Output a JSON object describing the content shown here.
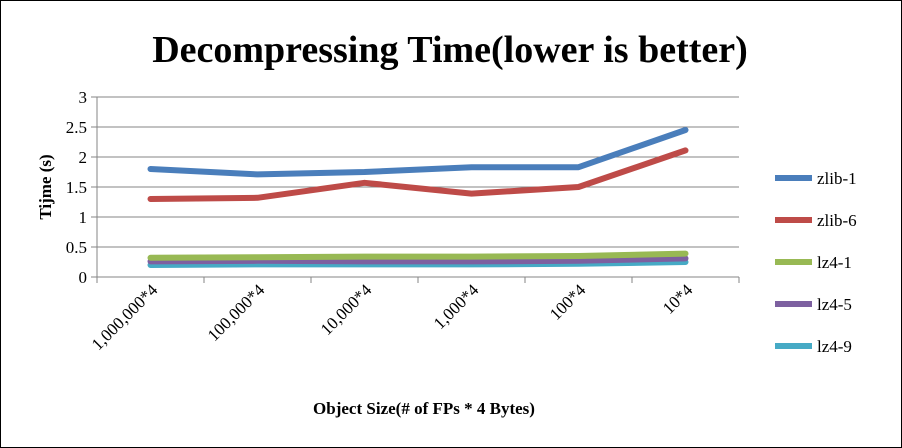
{
  "chart_data": {
    "type": "line",
    "title": "Decompressing Time(lower is better)",
    "xlabel": "Object Size(# of FPs * 4 Bytes)",
    "ylabel": "Tijme (s)",
    "categories": [
      "1,000,000*4",
      "100,000*4",
      "10,000*4",
      "1,000*4",
      "100*4",
      "10*4"
    ],
    "ylim": [
      0,
      3
    ],
    "yticks": [
      "0",
      "0.5",
      "1",
      "1.5",
      "2",
      "2.5",
      "3"
    ],
    "grid": true,
    "legend_position": "right",
    "series": [
      {
        "name": "zlib-1",
        "color": "#4a7ebb",
        "values": [
          1.8,
          1.71,
          1.75,
          1.83,
          1.83,
          2.45
        ]
      },
      {
        "name": "zlib-6",
        "color": "#be4b48",
        "values": [
          1.3,
          1.32,
          1.57,
          1.39,
          1.5,
          2.11
        ]
      },
      {
        "name": "lz4-1",
        "color": "#98b954",
        "values": [
          0.32,
          0.33,
          0.34,
          0.34,
          0.35,
          0.39
        ]
      },
      {
        "name": "lz4-5",
        "color": "#7d60a0",
        "values": [
          0.26,
          0.27,
          0.26,
          0.26,
          0.27,
          0.31
        ]
      },
      {
        "name": "lz4-9",
        "color": "#46aac5",
        "values": [
          0.2,
          0.21,
          0.21,
          0.21,
          0.22,
          0.25
        ]
      }
    ]
  }
}
